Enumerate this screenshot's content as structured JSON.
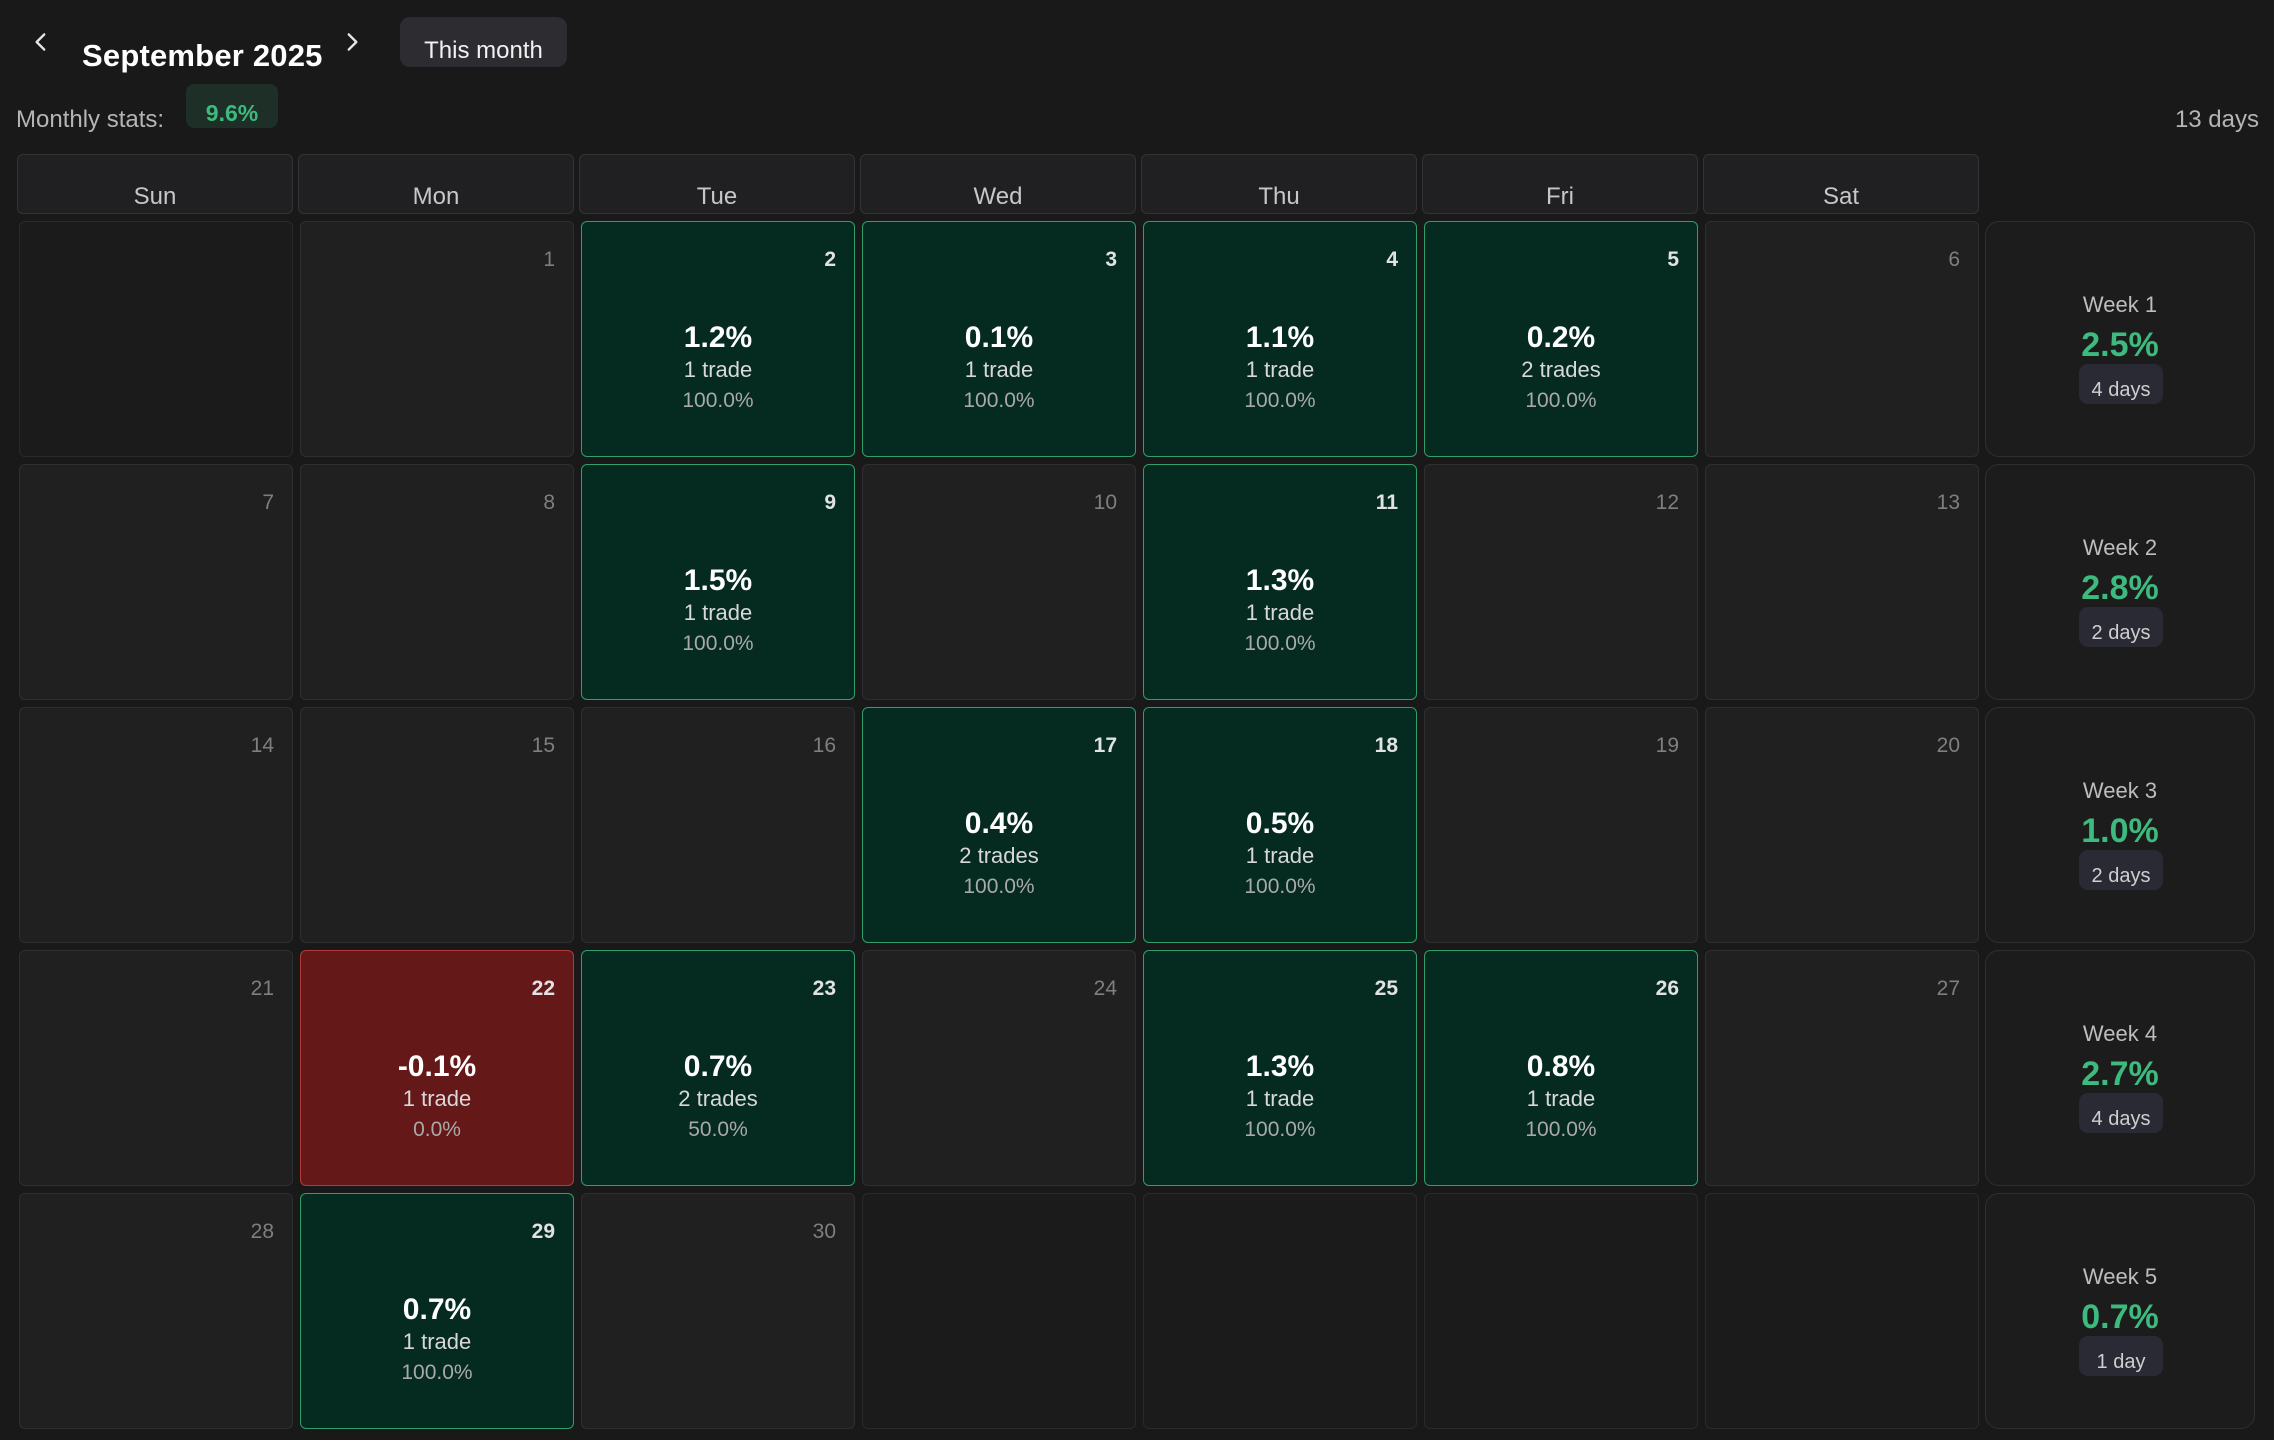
{
  "header": {
    "month_title": "September 2025",
    "this_month_label": "This month",
    "prev_icon": "chevron-left-icon",
    "next_icon": "chevron-right-icon"
  },
  "stats": {
    "monthly_label": "Monthly stats:",
    "monthly_value": "9.6%",
    "days_total": "13 days"
  },
  "colors": {
    "positive_bg": "#052a20",
    "positive_border": "#2f9e6b",
    "negative_bg": "#651818",
    "accent_green": "#3dbb7e"
  },
  "weekdays": [
    "Sun",
    "Mon",
    "Tue",
    "Wed",
    "Thu",
    "Fri",
    "Sat"
  ],
  "weeks": [
    {
      "days": [
        {
          "day": "",
          "type": "outside"
        },
        {
          "day": "1",
          "type": "empty"
        },
        {
          "day": "2",
          "type": "pos",
          "pnl": "1.2%",
          "trades": "1 trade",
          "winrate": "100.0%"
        },
        {
          "day": "3",
          "type": "pos",
          "pnl": "0.1%",
          "trades": "1 trade",
          "winrate": "100.0%"
        },
        {
          "day": "4",
          "type": "pos",
          "pnl": "1.1%",
          "trades": "1 trade",
          "winrate": "100.0%"
        },
        {
          "day": "5",
          "type": "pos",
          "pnl": "0.2%",
          "trades": "2 trades",
          "winrate": "100.0%"
        },
        {
          "day": "6",
          "type": "empty"
        }
      ],
      "summary": {
        "label": "Week 1",
        "pct": "2.5%",
        "days": "4 days"
      }
    },
    {
      "days": [
        {
          "day": "7",
          "type": "empty"
        },
        {
          "day": "8",
          "type": "empty"
        },
        {
          "day": "9",
          "type": "pos",
          "pnl": "1.5%",
          "trades": "1 trade",
          "winrate": "100.0%"
        },
        {
          "day": "10",
          "type": "empty"
        },
        {
          "day": "11",
          "type": "pos",
          "pnl": "1.3%",
          "trades": "1 trade",
          "winrate": "100.0%"
        },
        {
          "day": "12",
          "type": "empty"
        },
        {
          "day": "13",
          "type": "empty"
        }
      ],
      "summary": {
        "label": "Week 2",
        "pct": "2.8%",
        "days": "2 days"
      }
    },
    {
      "days": [
        {
          "day": "14",
          "type": "empty"
        },
        {
          "day": "15",
          "type": "empty"
        },
        {
          "day": "16",
          "type": "empty"
        },
        {
          "day": "17",
          "type": "pos",
          "pnl": "0.4%",
          "trades": "2 trades",
          "winrate": "100.0%"
        },
        {
          "day": "18",
          "type": "pos",
          "pnl": "0.5%",
          "trades": "1 trade",
          "winrate": "100.0%"
        },
        {
          "day": "19",
          "type": "empty"
        },
        {
          "day": "20",
          "type": "empty"
        }
      ],
      "summary": {
        "label": "Week 3",
        "pct": "1.0%",
        "days": "2 days"
      }
    },
    {
      "days": [
        {
          "day": "21",
          "type": "empty"
        },
        {
          "day": "22",
          "type": "neg",
          "pnl": "-0.1%",
          "trades": "1 trade",
          "winrate": "0.0%"
        },
        {
          "day": "23",
          "type": "pos",
          "pnl": "0.7%",
          "trades": "2 trades",
          "winrate": "50.0%"
        },
        {
          "day": "24",
          "type": "empty"
        },
        {
          "day": "25",
          "type": "pos",
          "pnl": "1.3%",
          "trades": "1 trade",
          "winrate": "100.0%"
        },
        {
          "day": "26",
          "type": "pos",
          "pnl": "0.8%",
          "trades": "1 trade",
          "winrate": "100.0%"
        },
        {
          "day": "27",
          "type": "empty"
        }
      ],
      "summary": {
        "label": "Week 4",
        "pct": "2.7%",
        "days": "4 days"
      }
    },
    {
      "days": [
        {
          "day": "28",
          "type": "empty"
        },
        {
          "day": "29",
          "type": "pos",
          "pnl": "0.7%",
          "trades": "1 trade",
          "winrate": "100.0%"
        },
        {
          "day": "30",
          "type": "empty"
        },
        {
          "day": "",
          "type": "outside"
        },
        {
          "day": "",
          "type": "outside"
        },
        {
          "day": "",
          "type": "outside"
        },
        {
          "day": "",
          "type": "outside"
        }
      ],
      "summary": {
        "label": "Week 5",
        "pct": "0.7%",
        "days": "1 day"
      }
    }
  ]
}
